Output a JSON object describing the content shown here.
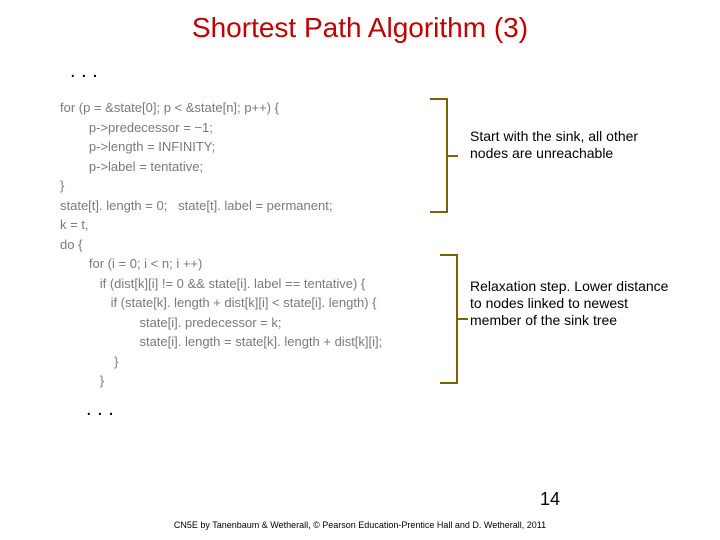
{
  "title": "Shortest Path Algorithm (3)",
  "top_dots": ".   .   .",
  "bottom_dots": ".   .   .",
  "code": "for (p = &state[0]; p < &state[n]; p++) {\n        p->predecessor = −1;\n        p->length = INFINITY;\n        p->label = tentative;\n}\nstate[t]. length = 0;   state[t]. label = permanent;\nk = t,\ndo {\n        for (i = 0; i < n; i ++)\n           if (dist[k][i] != 0 && state[i]. label == tentative) {\n              if (state[k]. length + dist[k][i] < state[i]. length) {\n                      state[i]. predecessor = k;\n                      state[i]. length = state[k]. length + dist[k][i];\n               }\n           }",
  "annotation1": "Start with the sink, all other nodes are unreachable",
  "annotation2": "Relaxation step. Lower distance to nodes linked to newest member of the sink tree",
  "page_number": "14",
  "footer": "CN5E by Tanenbaum  & Wetherall, © Pearson Education-Prentice Hall and D. Wetherall, 2011",
  "colors": {
    "title": "#c00000",
    "code_text": "#7a7a7a",
    "bracket": "#7f6000",
    "background": "#ffffff"
  }
}
